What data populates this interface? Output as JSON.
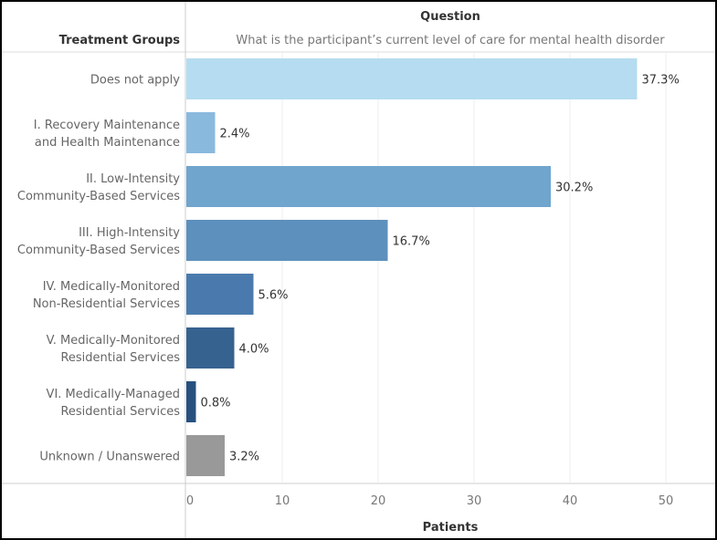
{
  "chart_data": {
    "type": "bar",
    "orientation": "horizontal",
    "row_header": "Treatment Groups",
    "column_header": "Question",
    "question": "What is the participant’s current level of care for mental health disorder",
    "xlabel": "Patients",
    "xlim": [
      0,
      53
    ],
    "xticks": [
      0,
      10,
      20,
      30,
      40,
      50
    ],
    "grid": true,
    "categories": [
      [
        "Does not apply"
      ],
      [
        "I. Recovery Maintenance",
        "and Health Maintenance"
      ],
      [
        "II. Low-Intensity",
        "Community-Based Services"
      ],
      [
        "III. High-Intensity",
        "Community-Based Services"
      ],
      [
        "IV. Medically-Monitored",
        "Non-Residential Services"
      ],
      [
        "V. Medically-Monitored",
        "Residential Services"
      ],
      [
        "VI. Medically-Managed",
        "Residential Services"
      ],
      [
        "Unknown / Unanswered"
      ]
    ],
    "values": [
      47,
      3,
      38,
      21,
      7,
      5,
      1,
      4
    ],
    "labels": [
      "37.3%",
      "2.4%",
      "30.2%",
      "16.7%",
      "5.6%",
      "4.0%",
      "0.8%",
      "3.2%"
    ],
    "colors": [
      "#b5dcf0",
      "#8ab9de",
      "#70a5cd",
      "#5d90bd",
      "#4a7aad",
      "#36628f",
      "#28507f",
      "#999999"
    ]
  }
}
